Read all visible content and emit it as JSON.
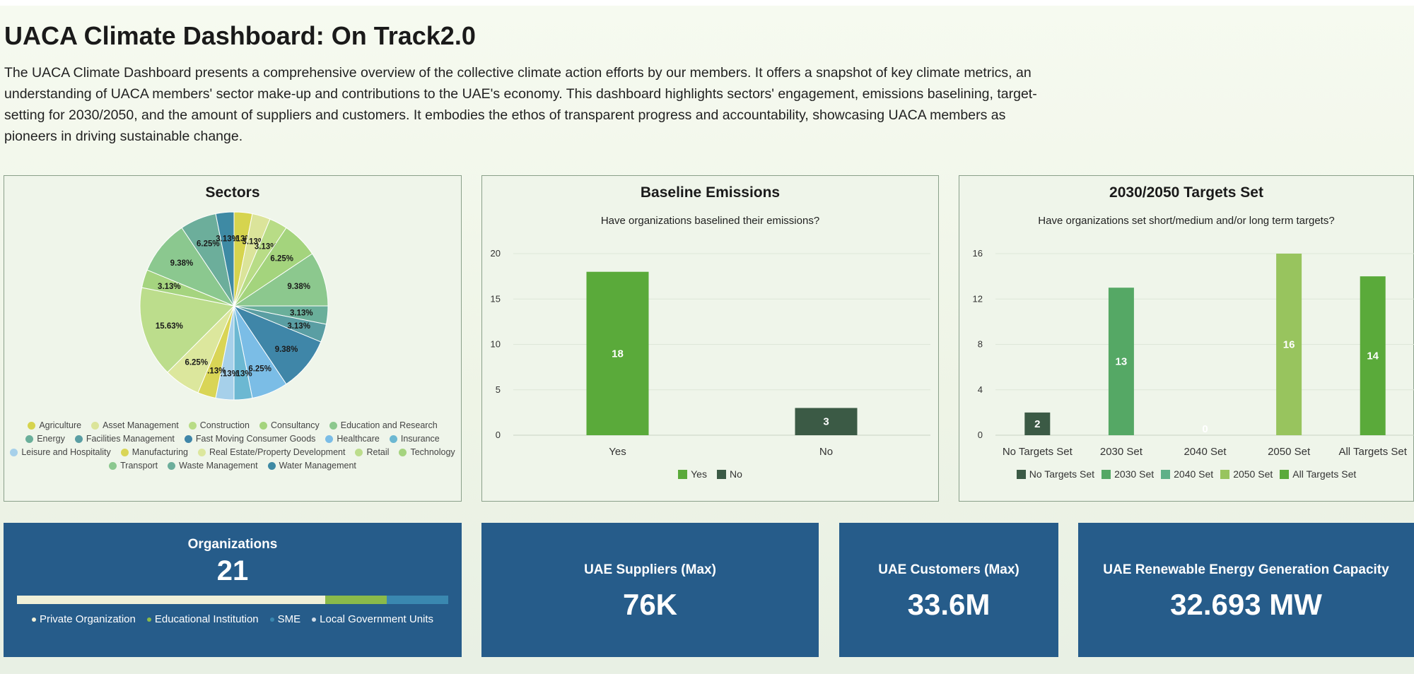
{
  "header": {
    "title": "UACA Climate Dashboard: On Track2.0",
    "intro": "The UACA Climate Dashboard presents a comprehensive overview of the collective climate action efforts by our members. It offers a snapshot of key climate metrics, an understanding of UACA members' sector make-up and contributions to the UAE's economy. This dashboard highlights sectors' engagement, emissions baselining, target-setting for 2030/2050, and the amount of suppliers and customers. It embodies the ethos of transparent progress and accountability, showcasing UACA members as pioneers in driving sustainable change."
  },
  "sectors_card": {
    "title": "Sectors"
  },
  "baseline_card": {
    "title": "Baseline Emissions",
    "subtitle": "Have organizations baselined their emissions?"
  },
  "targets_card": {
    "title": "2030/2050 Targets Set",
    "subtitle": "Have organizations set short/medium and/or long term targets?"
  },
  "chart_data": [
    {
      "type": "pie",
      "title": "Sectors",
      "categories": [
        "Agriculture",
        "Asset Management",
        "Construction",
        "Consultancy",
        "Education and Research",
        "Energy",
        "Facilities Management",
        "Fast Moving Consumer Goods",
        "Healthcare",
        "Insurance",
        "Leisure and Hospitality",
        "Manufacturing",
        "Real Estate/Property Development",
        "Retail",
        "Technology",
        "Transport",
        "Waste Management",
        "Water Management"
      ],
      "values": [
        3.13,
        3.13,
        3.13,
        6.25,
        9.38,
        3.13,
        3.13,
        9.38,
        6.25,
        3.13,
        3.13,
        3.13,
        6.25,
        15.63,
        3.13,
        9.38,
        6.25,
        3.13
      ],
      "labels": [
        "3.13%",
        "3.13%",
        "3.13%",
        "6.25%",
        "9.38%",
        "3.13%",
        "3.13%",
        "9.38%",
        "6.25%",
        "3.13%",
        "3.13%",
        "3.13%",
        "6.25%",
        "15.63%",
        "3.13%",
        "9.38%",
        "6.25%",
        "3.13%"
      ],
      "colors": [
        "#d6d44e",
        "#dbe49a",
        "#b8dc86",
        "#a4d47d",
        "#8cc88e",
        "#6aaf9a",
        "#5a9ea3",
        "#3f86a8",
        "#7bbde6",
        "#6cb8d2",
        "#a6d0ea",
        "#d9d556",
        "#dce79d",
        "#bcdd8c",
        "#a5d47f",
        "#8bc88f",
        "#6cae9b",
        "#3e8aa4"
      ],
      "legend_colors": [
        "#d6d44e",
        "#dbe49a",
        "#b8dc86",
        "#a4d47d",
        "#8cc88e",
        "#6aaf9a",
        "#5a9ea3",
        "#3f86a8",
        "#7bbde6",
        "#6cb8d2",
        "#a6d0ea",
        "#d9d556",
        "#dce79d",
        "#bcdd8c",
        "#a5d47f",
        "#8bc88f",
        "#6cae9b",
        "#3e8aa4"
      ]
    },
    {
      "type": "bar",
      "title": "Baseline Emissions",
      "subtitle": "Have organizations baselined their emissions?",
      "categories": [
        "Yes",
        "No"
      ],
      "values": [
        18,
        3
      ],
      "colors": [
        "#5aaa3a",
        "#3b5a45"
      ],
      "ylim": [
        0,
        20
      ],
      "yticks": [
        0,
        5,
        10,
        15,
        20
      ],
      "legend": [
        "Yes",
        "No"
      ]
    },
    {
      "type": "bar",
      "title": "2030/2050 Targets Set",
      "subtitle": "Have organizations set short/medium and/or long term targets?",
      "categories": [
        "No Targets Set",
        "2030 Set",
        "2040 Set",
        "2050 Set",
        "All Targets Set"
      ],
      "values": [
        2,
        13,
        0,
        16,
        14
      ],
      "colors": [
        "#3b5a45",
        "#55a865",
        "#5fb088",
        "#98c45e",
        "#5aaa3a"
      ],
      "ylim": [
        0,
        16
      ],
      "yticks": [
        0,
        4,
        8,
        12,
        16
      ],
      "legend": [
        "No Targets Set",
        "2030 Set",
        "2040 Set",
        "2050 Set",
        "All Targets Set"
      ]
    }
  ],
  "tiles": {
    "organizations": {
      "title": "Organizations",
      "value": "21",
      "segments": [
        {
          "label": "Private Organization",
          "share": 0.714,
          "color": "#f0f0d8"
        },
        {
          "label": "Educational Institution",
          "share": 0.143,
          "color": "#8aba4a"
        },
        {
          "label": "SME",
          "share": 0.143,
          "color": "#3a88b0"
        }
      ],
      "legend": [
        {
          "label": "Private Organization",
          "color": "#f0f0d8"
        },
        {
          "label": "Educational Institution",
          "color": "#8aba4a"
        },
        {
          "label": "SME",
          "color": "#3a88b0"
        },
        {
          "label": "Local Government Units",
          "color": "#d0dde8"
        }
      ]
    },
    "suppliers": {
      "title": "UAE Suppliers (Max)",
      "value": "76K"
    },
    "customers": {
      "title": "UAE Customers (Max)",
      "value": "33.6M"
    },
    "renewable": {
      "title": "UAE Renewable Energy Generation Capacity",
      "value": "32.693 MW"
    }
  }
}
